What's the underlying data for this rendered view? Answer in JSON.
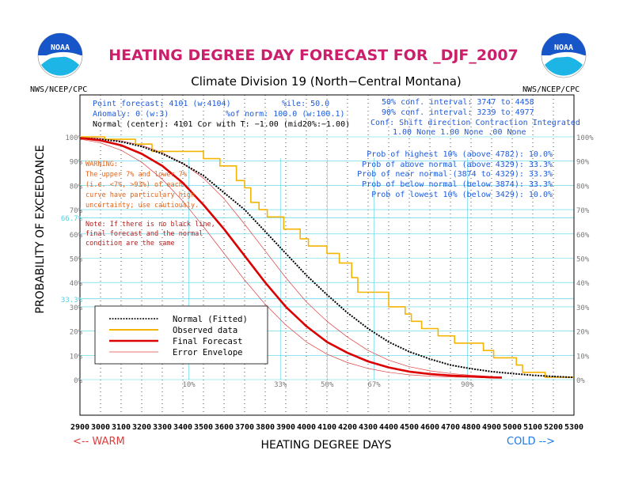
{
  "header": {
    "title": "HEATING DEGREE DAY FORECAST FOR _DJF_2007",
    "subtitle": "Climate Division 19 (North−Central Montana)",
    "left_org": "NWS/NCEP/CPC",
    "right_org": "NWS/NCEP/CPC",
    "logo_text": "NOAA"
  },
  "info_left": [
    "Point forecast: 4101 (w:4104)",
    "Anomaly: 0 (w:3)",
    "Normal (center): 4101 Cor with T: −1.00 (mid20%:−1.00)"
  ],
  "info_mid": [
    "%ile: 50.0",
    "%of norm:  100.0 (w:100.1)"
  ],
  "info_right": [
    "50% conf. interval: 3747 to 4458",
    "90% conf. interval: 3239 to 4977",
    "Conf: Shift direction  Contraction  Integrated",
    "1.00 None       1.00 None   .00 None"
  ],
  "probabilities": [
    "Prob of highest 10% (above 4782): 10.0%",
    "Prob of above normal (above 4329): 33.3%",
    "Prob of near normal (3874 to 4329): 33.3%",
    "Prob of below normal (below 3874): 33.3%",
    "Prob of lowest 10% (below 3429): 10.0%"
  ],
  "warning": [
    "WARNING:",
    "The upper 7% and lower 7%",
    "(i.e. <7%, >93%) of each",
    "curve have particulary high",
    "uncertainty; use cautiously."
  ],
  "note": [
    "Note: If there is no black line,",
    "final forecast and  the normal",
    "condition are the same"
  ],
  "footer": {
    "xlabel": "HEATING DEGREE DAYS",
    "warm": "<--  WARM",
    "cold": "COLD  -->",
    "ylabel": "PROBABILITY OF EXCEEDANCE"
  },
  "legend": [
    "Normal (Fitted)",
    "Observed data",
    "Final Forecast",
    "Error Envelope"
  ],
  "colors": {
    "title": "#cc1f6b",
    "subtitle": "#000000",
    "info_blue": "#1e5adc",
    "warning": "#e0641e",
    "note": "#b41e1e",
    "normal": "#000000",
    "observed": "#f5b400",
    "forecast": "#dc0000",
    "envelope": "#e04040",
    "cyan": "#50d2e6",
    "pct_label": "#7a7a7a",
    "warm": "#e03c3c",
    "cold": "#1e78e6"
  },
  "chart_data": {
    "type": "line",
    "title": "HEATING DEGREE DAY FORECAST FOR _DJF_2007",
    "xlabel": "HEATING DEGREE DAYS",
    "ylabel": "PROBABILITY OF EXCEEDANCE",
    "xlim": [
      2900,
      5300
    ],
    "ylim": [
      0,
      100
    ],
    "x_ticks": [
      2900,
      3000,
      3100,
      3200,
      3300,
      3400,
      3500,
      3600,
      3700,
      3800,
      3900,
      4000,
      4100,
      4200,
      4300,
      4400,
      4500,
      4600,
      4700,
      4800,
      4900,
      5000,
      5100,
      5200,
      5300
    ],
    "y_ticks": [
      0,
      10,
      20,
      30,
      40,
      50,
      60,
      70,
      80,
      90,
      100
    ],
    "y_tick_labels": [
      "0%",
      "10%",
      "20%",
      "30%",
      "40%",
      "50%",
      "60%",
      "70%",
      "80%",
      "90%",
      "100%"
    ],
    "y_ref_labels_left": [
      "66.7%",
      "33.3%"
    ],
    "percentile_markers": [
      {
        "label": "10%",
        "x": 3429
      },
      {
        "label": "33%",
        "x": 3874
      },
      {
        "label": "50%",
        "x": 4101
      },
      {
        "label": "67%",
        "x": 4329
      },
      {
        "label": "90%",
        "x": 4782
      }
    ],
    "series": [
      {
        "name": "Normal (Fitted)",
        "x": [
          2900,
          3000,
          3100,
          3200,
          3300,
          3400,
          3500,
          3600,
          3700,
          3800,
          3900,
          4000,
          4100,
          4200,
          4300,
          4400,
          4500,
          4600,
          4700,
          4800,
          4900,
          5000,
          5100,
          5200,
          5300
        ],
        "y": [
          99.5,
          99,
          98,
          96,
          93,
          89,
          84,
          77,
          70,
          61,
          52,
          43,
          35,
          27.5,
          21,
          15.5,
          11.5,
          8.5,
          6,
          4.5,
          3.3,
          2.5,
          1.8,
          1.3,
          0.9
        ]
      },
      {
        "name": "Observed data",
        "x": [
          2900,
          3020,
          3020,
          3170,
          3170,
          3250,
          3250,
          3500,
          3500,
          3580,
          3580,
          3660,
          3660,
          3700,
          3700,
          3730,
          3730,
          3770,
          3770,
          3810,
          3810,
          3890,
          3890,
          3970,
          3970,
          4010,
          4010,
          4100,
          4100,
          4160,
          4160,
          4220,
          4220,
          4250,
          4250,
          4400,
          4400,
          4480,
          4480,
          4510,
          4510,
          4560,
          4560,
          4640,
          4640,
          4720,
          4720,
          4860,
          4860,
          4910,
          4910,
          5020,
          5020,
          5050,
          5050,
          5160,
          5160,
          5300
        ],
        "y": [
          100,
          100,
          99,
          99,
          97,
          97,
          94,
          94,
          91,
          91,
          88,
          88,
          82,
          82,
          79,
          79,
          73,
          73,
          70,
          70,
          67,
          67,
          62,
          62,
          58,
          58,
          55,
          55,
          52,
          52,
          48,
          48,
          42,
          42,
          36,
          36,
          30,
          30,
          27,
          27,
          24,
          24,
          21,
          21,
          18,
          18,
          15,
          15,
          12,
          12,
          9,
          9,
          6,
          6,
          3,
          3,
          1,
          1
        ]
      },
      {
        "name": "Final Forecast",
        "x": [
          2900,
          3000,
          3100,
          3200,
          3300,
          3400,
          3500,
          3600,
          3700,
          3800,
          3900,
          4000,
          4100,
          4200,
          4300,
          4400,
          4500,
          4600,
          4700,
          4800,
          4900,
          4950
        ],
        "y": [
          99.5,
          98.5,
          96.5,
          93,
          88,
          81,
          72,
          62,
          51,
          40,
          30,
          22,
          15.5,
          11,
          7.5,
          5,
          3.3,
          2.3,
          1.7,
          1.3,
          0.9,
          0.8
        ]
      },
      {
        "name": "Error Envelope",
        "x": [
          2900,
          3000,
          3100,
          3200,
          3300,
          3400,
          3500,
          3600,
          3700,
          3800,
          3900,
          4000,
          4100,
          4200,
          4300,
          4400,
          4500,
          4600,
          4700,
          4800,
          4900,
          4950
        ],
        "y": [
          99.8,
          99.3,
          98.3,
          96.5,
          93.5,
          89,
          83,
          74.5,
          64,
          53,
          42,
          32,
          24,
          17.5,
          12,
          8,
          5.3,
          3.6,
          2.5,
          1.8,
          1.3,
          1.1
        ]
      },
      {
        "name": "Error Envelope",
        "x": [
          2900,
          3000,
          3100,
          3200,
          3300,
          3400,
          3500,
          3600,
          3700,
          3800,
          3900,
          4000,
          4100,
          4200,
          4300,
          4400,
          4500,
          4600,
          4700,
          4800,
          4900,
          4950
        ],
        "y": [
          99.1,
          97.5,
          94.5,
          89.5,
          82.5,
          73.5,
          63,
          52,
          41,
          31,
          22.5,
          15.5,
          10.5,
          7,
          4.6,
          3,
          2,
          1.4,
          1.1,
          0.9,
          0.7,
          0.6
        ]
      }
    ]
  }
}
